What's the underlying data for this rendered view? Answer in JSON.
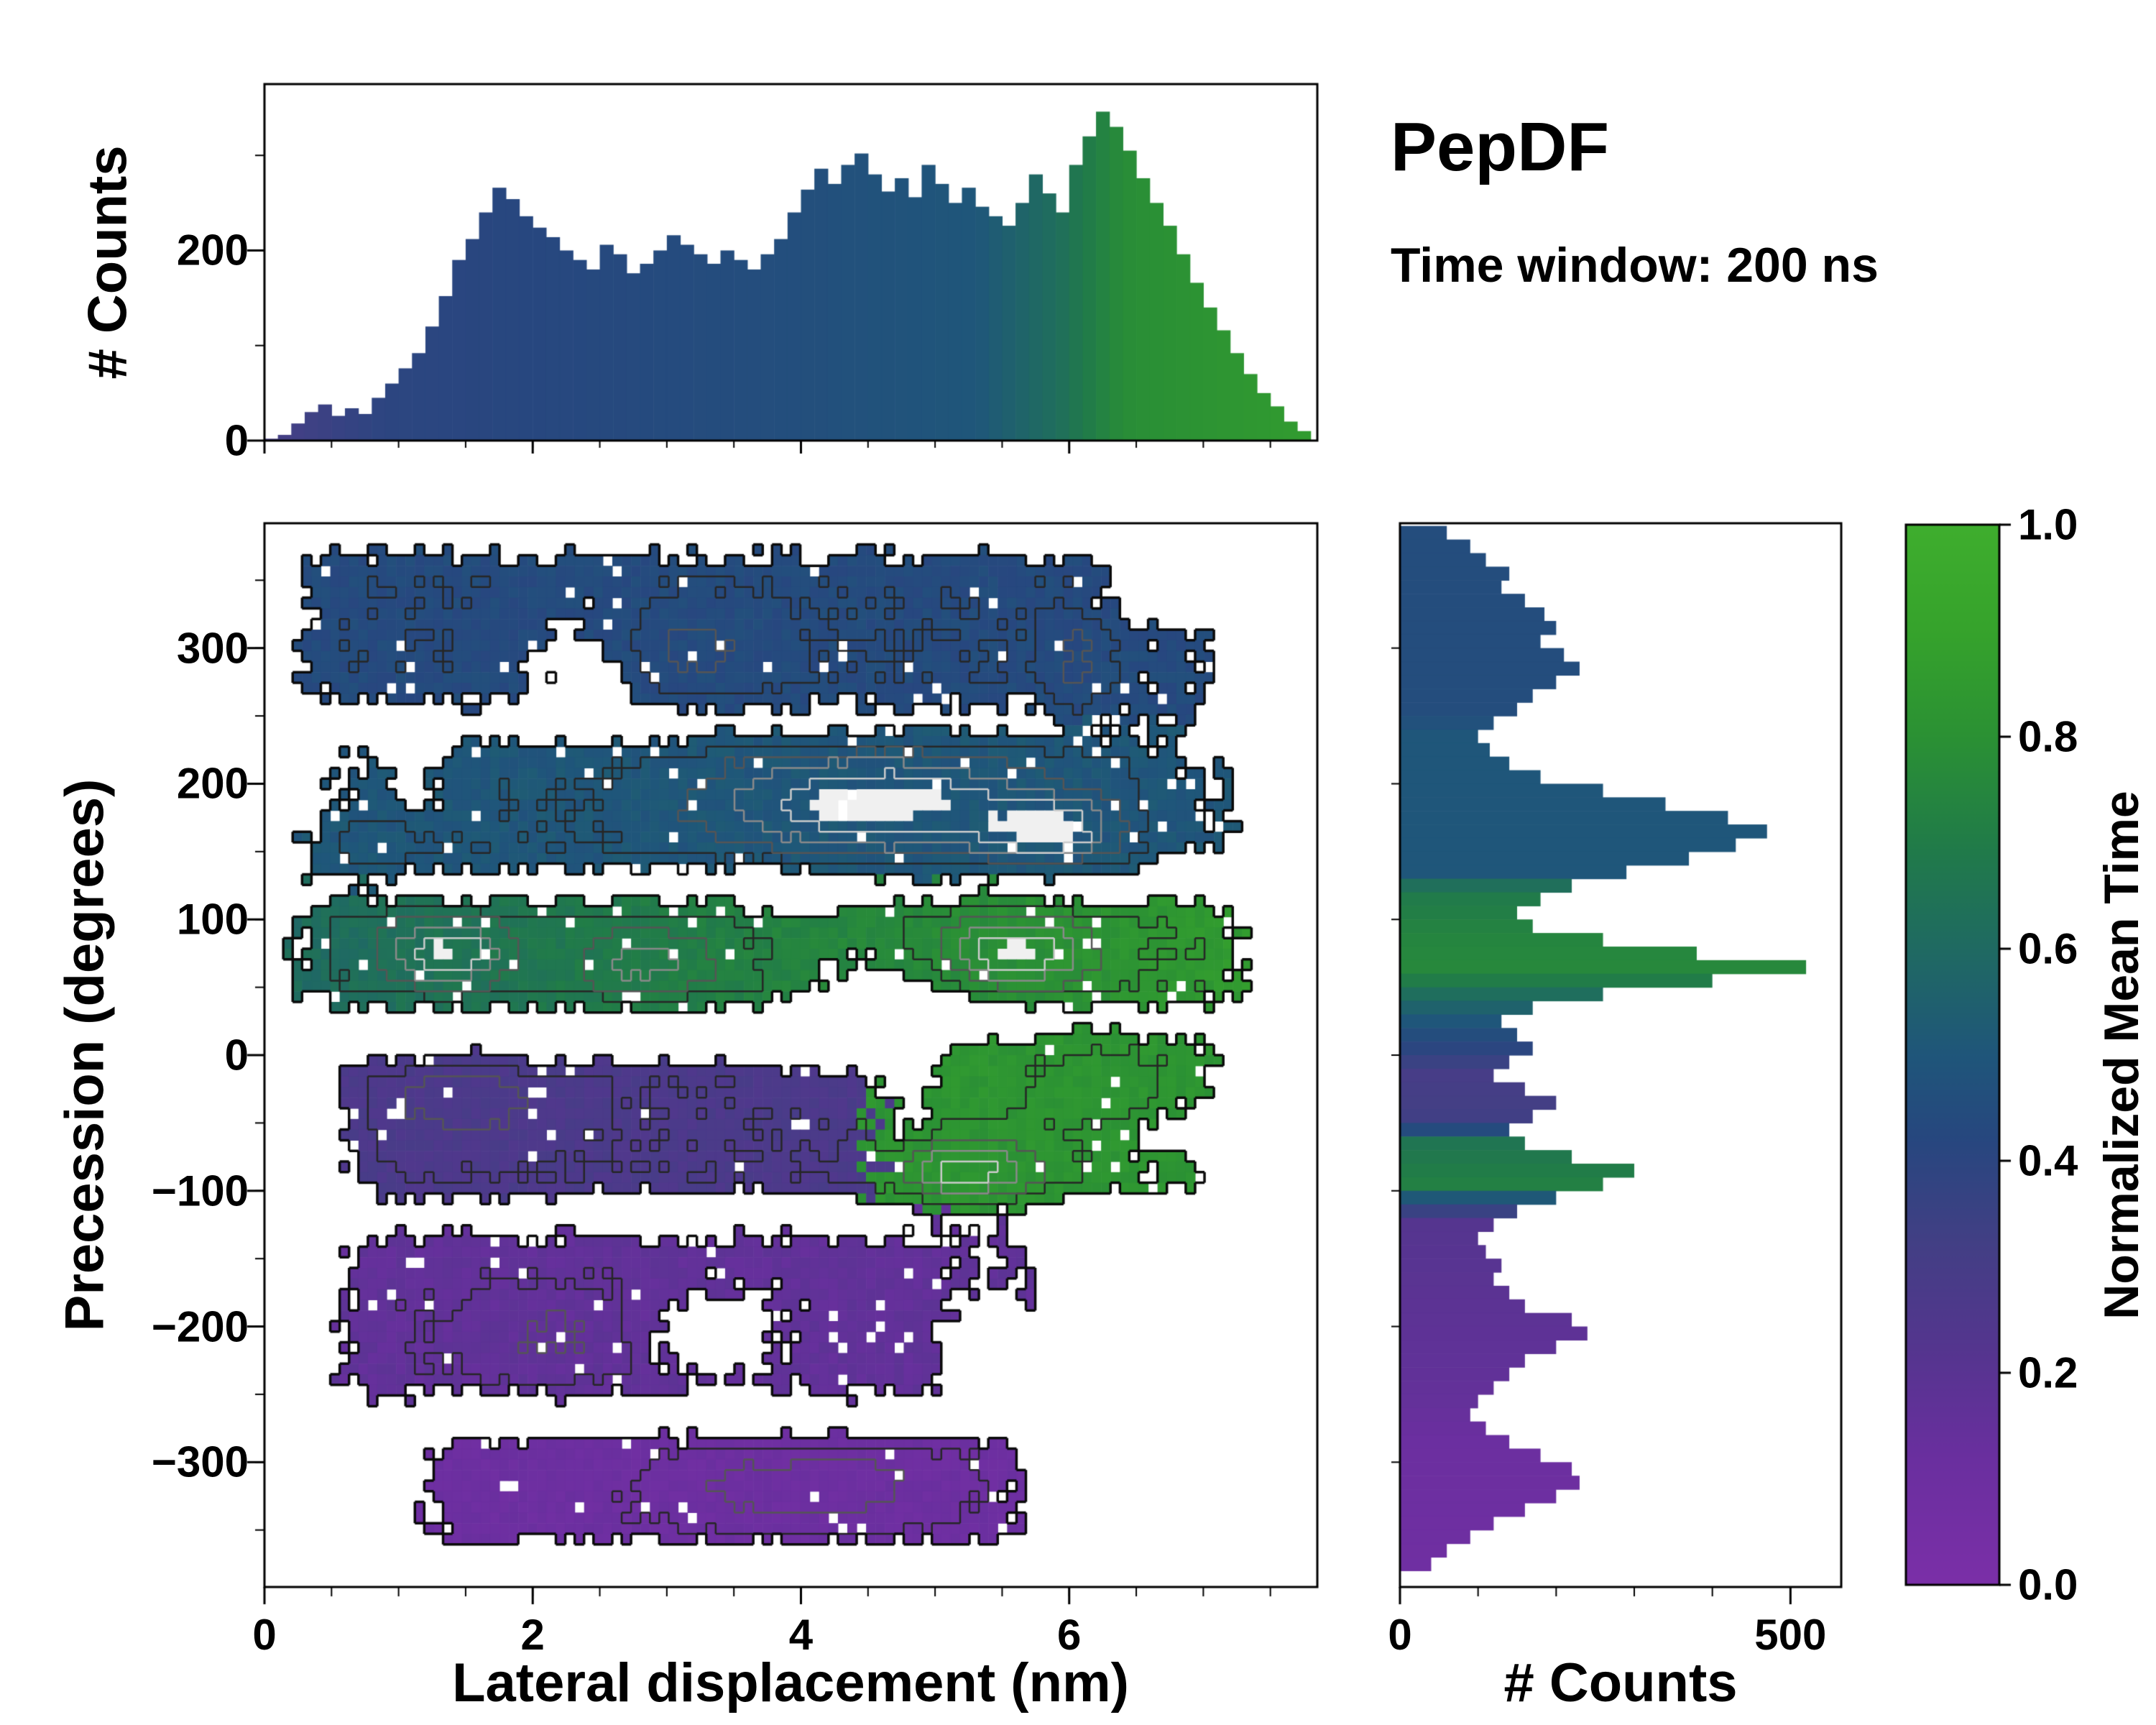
{
  "header": {
    "title": "PepDF",
    "subtitle": "Time window: 200 ns"
  },
  "chart_data": {
    "type": "heatmap_with_marginal_histograms",
    "axes": {
      "main": {
        "xlabel": "Lateral displacement (nm)",
        "ylabel": "Precession (degrees)",
        "x_range": [
          0,
          7.85
        ],
        "y_range": [
          -392,
          392
        ],
        "x_ticks": [
          {
            "v": 0,
            "label": "0"
          },
          {
            "v": 2,
            "label": "2"
          },
          {
            "v": 4,
            "label": "4"
          },
          {
            "v": 6,
            "label": "6"
          }
        ],
        "y_ticks": [
          {
            "v": 300,
            "label": "300"
          },
          {
            "v": 200,
            "label": "200"
          },
          {
            "v": 100,
            "label": "100"
          },
          {
            "v": 0,
            "label": "0"
          },
          {
            "v": -100,
            "label": "−100"
          },
          {
            "v": -200,
            "label": "−200"
          },
          {
            "v": -300,
            "label": "−300"
          }
        ],
        "x_minor_step": 0.5,
        "y_minor_step": 50
      },
      "top": {
        "ylabel": "# Counts",
        "y_range": [
          0,
          375
        ],
        "y_ticks": [
          {
            "v": 0,
            "label": "0"
          },
          {
            "v": 200,
            "label": "200"
          }
        ],
        "y_minor": [
          100,
          300
        ]
      },
      "right": {
        "xlabel": "# Counts",
        "x_range": [
          0,
          565
        ],
        "x_ticks": [
          {
            "v": 0,
            "label": "0"
          },
          {
            "v": 500,
            "label": "500"
          }
        ],
        "x_minor": [
          100,
          200,
          300,
          400
        ]
      },
      "colorbar": {
        "label": "Normalized Mean Time",
        "ticks": [
          {
            "v": 1.0,
            "label": "1.0"
          },
          {
            "v": 0.8,
            "label": "0.8"
          },
          {
            "v": 0.6,
            "label": "0.6"
          },
          {
            "v": 0.4,
            "label": "0.4"
          },
          {
            "v": 0.2,
            "label": "0.2"
          },
          {
            "v": 0.0,
            "label": "0.0"
          }
        ]
      }
    },
    "colormap": {
      "stops": [
        [
          0.0,
          "#7b2fa8"
        ],
        [
          0.12,
          "#6a2f9f"
        ],
        [
          0.22,
          "#55358f"
        ],
        [
          0.32,
          "#433f85"
        ],
        [
          0.42,
          "#27477f"
        ],
        [
          0.5,
          "#1f567a"
        ],
        [
          0.6,
          "#1f6a62"
        ],
        [
          0.7,
          "#217c48"
        ],
        [
          0.8,
          "#2b9134"
        ],
        [
          0.9,
          "#36a32c"
        ],
        [
          1.0,
          "#3fae2e"
        ]
      ]
    },
    "top_hist": {
      "x0": 0,
      "dx": 0.1,
      "counts": [
        2,
        6,
        18,
        30,
        38,
        26,
        34,
        28,
        45,
        60,
        76,
        92,
        120,
        152,
        190,
        212,
        240,
        266,
        254,
        236,
        224,
        214,
        200,
        190,
        180,
        206,
        196,
        176,
        186,
        200,
        216,
        206,
        196,
        186,
        200,
        190,
        180,
        196,
        212,
        240,
        264,
        286,
        270,
        290,
        302,
        280,
        262,
        276,
        256,
        290,
        270,
        250,
        266,
        246,
        236,
        226,
        250,
        280,
        260,
        240,
        290,
        320,
        346,
        330,
        305,
        276,
        250,
        226,
        196,
        166,
        140,
        116,
        92,
        70,
        50,
        36,
        20,
        10
      ],
      "t_vs_x": [
        [
          0,
          0.3
        ],
        [
          0.9,
          0.4
        ],
        [
          2.0,
          0.42
        ],
        [
          4.0,
          0.46
        ],
        [
          5.3,
          0.5
        ],
        [
          5.9,
          0.62
        ],
        [
          6.4,
          0.78
        ],
        [
          7.8,
          0.86
        ]
      ]
    },
    "right_hist": {
      "y0": 385,
      "dy": -10,
      "counts": [
        60,
        90,
        110,
        140,
        130,
        160,
        185,
        200,
        180,
        210,
        230,
        200,
        170,
        150,
        120,
        100,
        115,
        140,
        180,
        260,
        340,
        420,
        470,
        430,
        370,
        290,
        220,
        180,
        150,
        170,
        260,
        380,
        520,
        400,
        260,
        170,
        130,
        150,
        170,
        140,
        120,
        160,
        200,
        170,
        140,
        160,
        220,
        300,
        260,
        200,
        150,
        120,
        100,
        110,
        130,
        120,
        140,
        160,
        220,
        240,
        200,
        160,
        140,
        120,
        100,
        90,
        110,
        140,
        180,
        220,
        230,
        200,
        160,
        120,
        90,
        60,
        40
      ],
      "t_vs_y": [
        [
          -390,
          0.08
        ],
        [
          -285,
          0.11
        ],
        [
          -255,
          0.15
        ],
        [
          -125,
          0.22
        ],
        [
          -108,
          0.45
        ],
        [
          -95,
          0.72
        ],
        [
          -65,
          0.66
        ],
        [
          -50,
          0.33
        ],
        [
          -15,
          0.3
        ],
        [
          8,
          0.42
        ],
        [
          25,
          0.5
        ],
        [
          45,
          0.62
        ],
        [
          62,
          0.76
        ],
        [
          90,
          0.74
        ],
        [
          122,
          0.68
        ],
        [
          132,
          0.5
        ],
        [
          238,
          0.5
        ],
        [
          250,
          0.45
        ],
        [
          390,
          0.45
        ]
      ]
    },
    "main_heatmap": {
      "grid": {
        "nx": 112,
        "ny": 100
      },
      "noise": {
        "seed": 1234,
        "amp": 0.55,
        "dropout": 0.035
      },
      "bands": [
        {
          "amp": 1.0,
          "x0": 0.05,
          "x1": 6.55,
          "sx": 0.5,
          "y0": 245,
          "y1": 382,
          "sy": 28
        },
        {
          "amp": 0.65,
          "x0": 5.7,
          "x1": 7.3,
          "sx": 0.35,
          "y0": 228,
          "y1": 332,
          "sy": 22
        },
        {
          "amp": 1.0,
          "x0": 0.35,
          "x1": 6.95,
          "sx": 0.5,
          "y0": 126,
          "y1": 244,
          "sy": 24
        },
        {
          "amp": 0.55,
          "x0": 6.6,
          "x1": 7.45,
          "sx": 0.3,
          "y0": 140,
          "y1": 228,
          "sy": 20
        },
        {
          "amp": 1.0,
          "x0": 0.02,
          "x1": 7.5,
          "sx": 0.5,
          "y0": 26,
          "y1": 124,
          "sy": 24
        },
        {
          "amp": 0.9,
          "x0": 4.7,
          "x1": 7.28,
          "sx": 0.38,
          "y0": -112,
          "y1": 28,
          "sy": 24
        },
        {
          "amp": 1.0,
          "x0": 0.45,
          "x1": 4.85,
          "sx": 0.4,
          "y0": -112,
          "y1": 4,
          "sy": 22
        },
        {
          "amp": 0.95,
          "x0": 0.35,
          "x1": 5.25,
          "sx": 0.45,
          "y0": -262,
          "y1": -122,
          "sy": 24
        },
        {
          "amp": 0.5,
          "x0": 4.9,
          "x1": 6.0,
          "sx": 0.3,
          "y0": -196,
          "y1": -122,
          "sy": 18
        },
        {
          "amp": 0.95,
          "x0": 0.98,
          "x1": 5.85,
          "sx": 0.5,
          "y0": -368,
          "y1": -272,
          "sy": 20
        }
      ],
      "blobs": [
        [
          2.2,
          4.55,
          185,
          0.85,
          26
        ],
        [
          1.9,
          5.85,
          165,
          0.33,
          16
        ],
        [
          0.8,
          3.05,
          298,
          0.5,
          24
        ],
        [
          2.0,
          1.35,
          76,
          0.33,
          18
        ],
        [
          1.2,
          2.85,
          68,
          0.4,
          20
        ],
        [
          2.1,
          5.6,
          76,
          0.38,
          18
        ],
        [
          2.0,
          5.2,
          -88,
          0.42,
          18
        ],
        [
          0.8,
          1.5,
          -34,
          0.5,
          24
        ],
        [
          0.7,
          2.2,
          -206,
          0.5,
          22
        ],
        [
          0.8,
          4.35,
          -318,
          0.5,
          20
        ],
        [
          0.6,
          3.6,
          -320,
          0.45,
          18
        ],
        [
          0.6,
          6.3,
          -28,
          0.38,
          18
        ],
        [
          0.7,
          0.6,
          150,
          0.35,
          22
        ]
      ],
      "holes": [
        [
          -1.35,
          4.6,
          28,
          0.42,
          28
        ],
        [
          -1.15,
          2.45,
          286,
          0.33,
          32
        ],
        [
          -1.0,
          3.35,
          -206,
          0.42,
          26
        ],
        [
          -0.85,
          1.08,
          210,
          0.22,
          26
        ],
        [
          -0.8,
          6.82,
          -58,
          0.28,
          22
        ],
        [
          -0.7,
          3.9,
          120,
          0.3,
          16
        ]
      ],
      "t_bands": [
        {
          "y0": 245,
          "y1": 392,
          "t": 0.44
        },
        {
          "y0": 126,
          "y1": 245,
          "t": 0.5
        },
        {
          "y0": 26,
          "y1": 126,
          "t0": 0.6,
          "slope": 0.034,
          "tMax": 0.86
        },
        {
          "y0": -114,
          "y1": 26,
          "tLeft": 0.27,
          "tRight": 0.82,
          "xSplit": 4.55
        },
        {
          "y0": -264,
          "y1": -114,
          "t": 0.16
        },
        {
          "y0": -392,
          "y1": -264,
          "t": 0.1
        }
      ],
      "contour_levels": [
        {
          "th": 1.05,
          "color": "#262626",
          "lw": 2.5
        },
        {
          "th": 1.55,
          "color": "#555555",
          "lw": 2.5
        },
        {
          "th": 2.05,
          "color": "#8a8a8a",
          "lw": 2.5
        },
        {
          "th": 2.55,
          "color": "#cccccc",
          "lw": 2.5
        }
      ],
      "white_core_level": 2.9,
      "outline": {
        "color": "#0a0a0a",
        "lw": 3.5
      }
    }
  }
}
